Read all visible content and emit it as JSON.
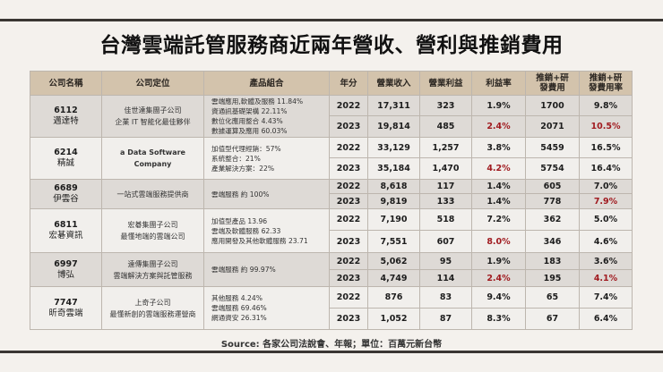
{
  "title": "台灣雲端託管服務商近兩年營收、營利與推銷費用",
  "table": {
    "headers": [
      "公司名稱",
      "公司定位",
      "產品組合",
      "年分",
      "營業收入",
      "營業利益",
      "利益率",
      "推銷+研發費用",
      "推銷+研發費用率"
    ],
    "companies": [
      {
        "code": "6112",
        "name": "邁達特",
        "position": [
          "佳世達集團子公司",
          "企業 IT 智能化最佳夥伴"
        ],
        "products": [
          "雲端應用,軟體及服務 11.84%",
          "資通訊基礎架構 22.11%",
          "數位化應用整合 4.43%",
          "數據運算及應用 60.03%"
        ],
        "rows": [
          {
            "year": "2022",
            "revenue": "17,311",
            "op_income": "323",
            "margin": "1.9%",
            "expense": "1700",
            "expense_rate": "9.8%"
          },
          {
            "year": "2023",
            "revenue": "19,814",
            "op_income": "485",
            "margin": "2.4%",
            "expense": "2071",
            "expense_rate": "10.5%"
          }
        ]
      },
      {
        "code": "6214",
        "name": "精誠",
        "position": [
          "a Data Software",
          "Company"
        ],
        "products": [
          "加值型代理經銷：57%",
          "系統整合：21%",
          "產業解決方案：22%"
        ],
        "rows": [
          {
            "year": "2022",
            "revenue": "33,129",
            "op_income": "1,257",
            "margin": "3.8%",
            "expense": "5459",
            "expense_rate": "16.5%"
          },
          {
            "year": "2023",
            "revenue": "35,184",
            "op_income": "1,470",
            "margin": "4.2%",
            "expense": "5754",
            "expense_rate": "16.4%"
          }
        ]
      },
      {
        "code": "6689",
        "name": "伊雲谷",
        "position": [
          "一站式雲端服務提供商"
        ],
        "products": [
          "雲端服務 約 100%"
        ],
        "rows": [
          {
            "year": "2022",
            "revenue": "8,618",
            "op_income": "117",
            "margin": "1.4%",
            "expense": "605",
            "expense_rate": "7.0%"
          },
          {
            "year": "2023",
            "revenue": "9,819",
            "op_income": "133",
            "margin": "1.4%",
            "expense": "778",
            "expense_rate": "7.9%"
          }
        ]
      },
      {
        "code": "6811",
        "name": "宏碁資訊",
        "position": [
          "宏碁集團子公司",
          "最懂地端的雲端公司"
        ],
        "products": [
          "加值型產品 13.96",
          "雲端及軟體服務 62.33",
          "應用開發及其他軟體服務 23.71"
        ],
        "rows": [
          {
            "year": "2022",
            "revenue": "7,190",
            "op_income": "518",
            "margin": "7.2%",
            "expense": "362",
            "expense_rate": "5.0%"
          },
          {
            "year": "2023",
            "revenue": "7,551",
            "op_income": "607",
            "margin": "8.0%",
            "expense": "346",
            "expense_rate": "4.6%"
          }
        ]
      },
      {
        "code": "6997",
        "name": "博弘",
        "position": [
          "遠傳集團子公司",
          "雲端解決方案與託管服務"
        ],
        "products": [
          "雲端服務 約 99.97%"
        ],
        "rows": [
          {
            "year": "2022",
            "revenue": "5,062",
            "op_income": "95",
            "margin": "1.9%",
            "expense": "183",
            "expense_rate": "3.6%"
          },
          {
            "year": "2023",
            "revenue": "4,749",
            "op_income": "114",
            "margin": "2.4%",
            "expense": "195",
            "expense_rate": "4.1%"
          }
        ]
      },
      {
        "code": "7747",
        "name": "昕奇雲端",
        "position": [
          "上奇子公司",
          "最懂新創的雲端服務運營商"
        ],
        "products": [
          "其他服務 4.24%",
          "雲端服務 69.46%",
          "網通資安 26.31%"
        ],
        "rows": [
          {
            "year": "2022",
            "revenue": "876",
            "op_income": "83",
            "margin": "9.4%",
            "expense": "65",
            "expense_rate": "7.4%"
          },
          {
            "year": "2023",
            "revenue": "1,052",
            "op_income": "87",
            "margin": "8.3%",
            "expense": "67",
            "expense_rate": "6.4%"
          }
        ]
      }
    ]
  },
  "highlight_color": "#a01a1f",
  "header_bg": "#d3c3ac",
  "source": "Source:  各家公司法說會、年報；單位：百萬元新台幣"
}
